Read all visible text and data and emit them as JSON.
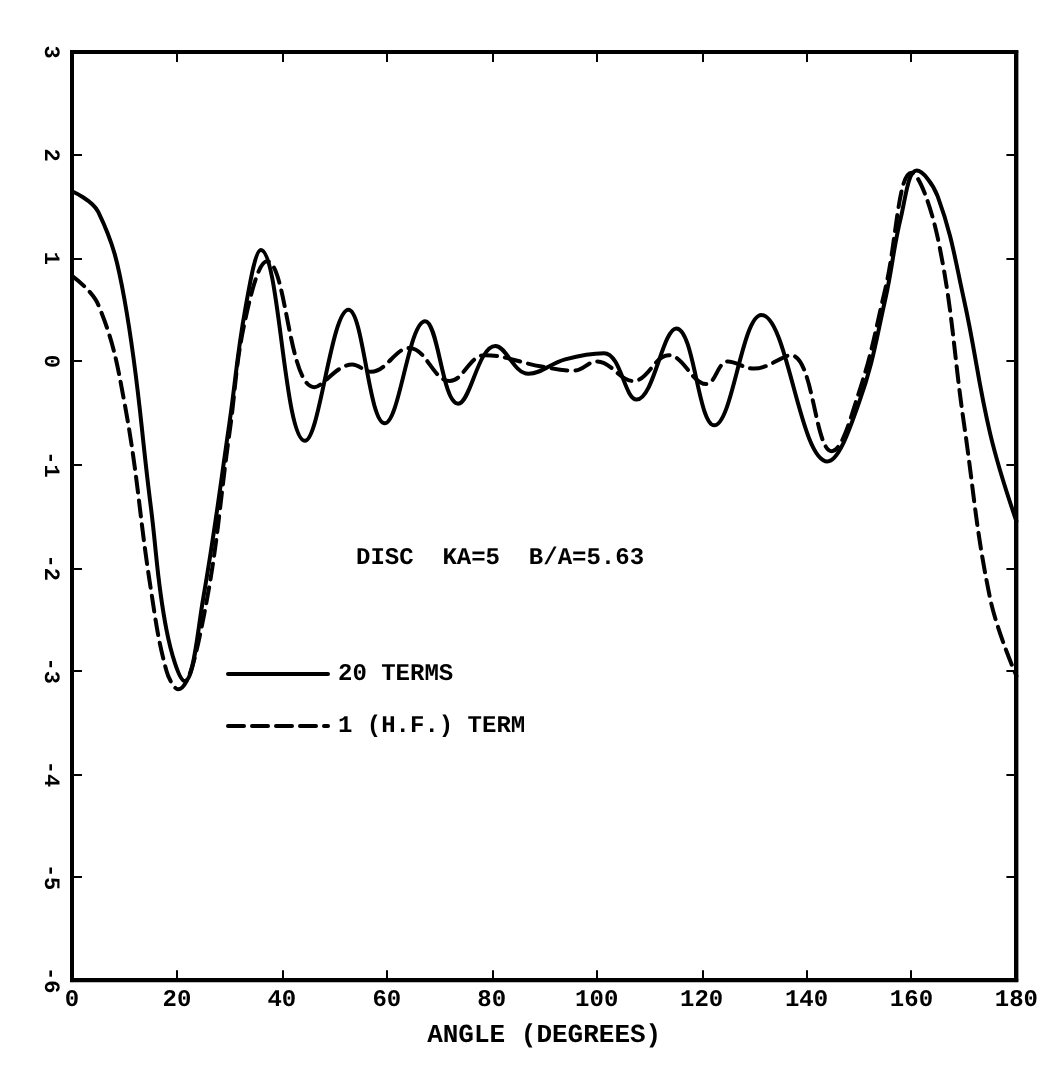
{
  "chart_data": {
    "type": "line",
    "xlabel": "ANGLE (DEGREES)",
    "annotations": [
      "DISC  KA=5  B/A=5.63"
    ],
    "xlim": [
      0,
      180
    ],
    "xticks": [
      0,
      20,
      40,
      60,
      80,
      100,
      120,
      140,
      160,
      180
    ],
    "ylim": [
      -6,
      3
    ],
    "yticks": [
      -6,
      -5,
      -4,
      -3,
      -2,
      -1,
      0,
      1,
      2,
      3
    ],
    "grid": false,
    "legend": "left",
    "marker": "none",
    "series": [
      {
        "name": "20 TERMS",
        "color": "#000000",
        "line_style": "solid",
        "x": [
          0,
          5,
          10,
          15,
          18,
          21.5,
          25,
          30,
          33,
          36,
          44.4,
          52.7,
          59.6,
          67.3,
          73.6,
          80.7,
          87,
          94,
          101.4,
          107.6,
          115.2,
          122.4,
          131.4,
          144,
          150,
          155,
          158,
          161,
          165,
          170,
          175,
          180
        ],
        "values": [
          1.65,
          1.45,
          0.6,
          -1.4,
          -2.6,
          -3.1,
          -2.3,
          -0.6,
          0.5,
          1.08,
          -0.77,
          0.5,
          -0.6,
          0.39,
          -0.41,
          0.15,
          -0.12,
          0.02,
          0.08,
          -0.37,
          0.32,
          -0.62,
          0.45,
          -0.97,
          -0.4,
          0.6,
          1.4,
          1.85,
          1.6,
          0.6,
          -0.7,
          -1.55
        ]
      },
      {
        "name": "1 (H.F.) TERM",
        "color": "#000000",
        "line_style": "dashed",
        "x": [
          0,
          5,
          10,
          15,
          18,
          20.2,
          25,
          30,
          33,
          37.2,
          46.2,
          53.4,
          57,
          64.3,
          72,
          78.7,
          89.5,
          95.7,
          100,
          107,
          113.7,
          120.9,
          125,
          130,
          137,
          144.8,
          150,
          155,
          160,
          165,
          170,
          175,
          180
        ],
        "values": [
          0.83,
          0.55,
          -0.4,
          -2.2,
          -3.0,
          -3.18,
          -2.5,
          -0.7,
          0.4,
          0.97,
          -0.25,
          -0.03,
          -0.1,
          0.13,
          -0.19,
          0.06,
          -0.05,
          -0.09,
          0,
          -0.19,
          0.06,
          -0.22,
          0,
          -0.07,
          0.06,
          -0.87,
          -0.3,
          0.7,
          1.83,
          1.2,
          -0.6,
          -2.3,
          -3.05
        ]
      }
    ]
  }
}
